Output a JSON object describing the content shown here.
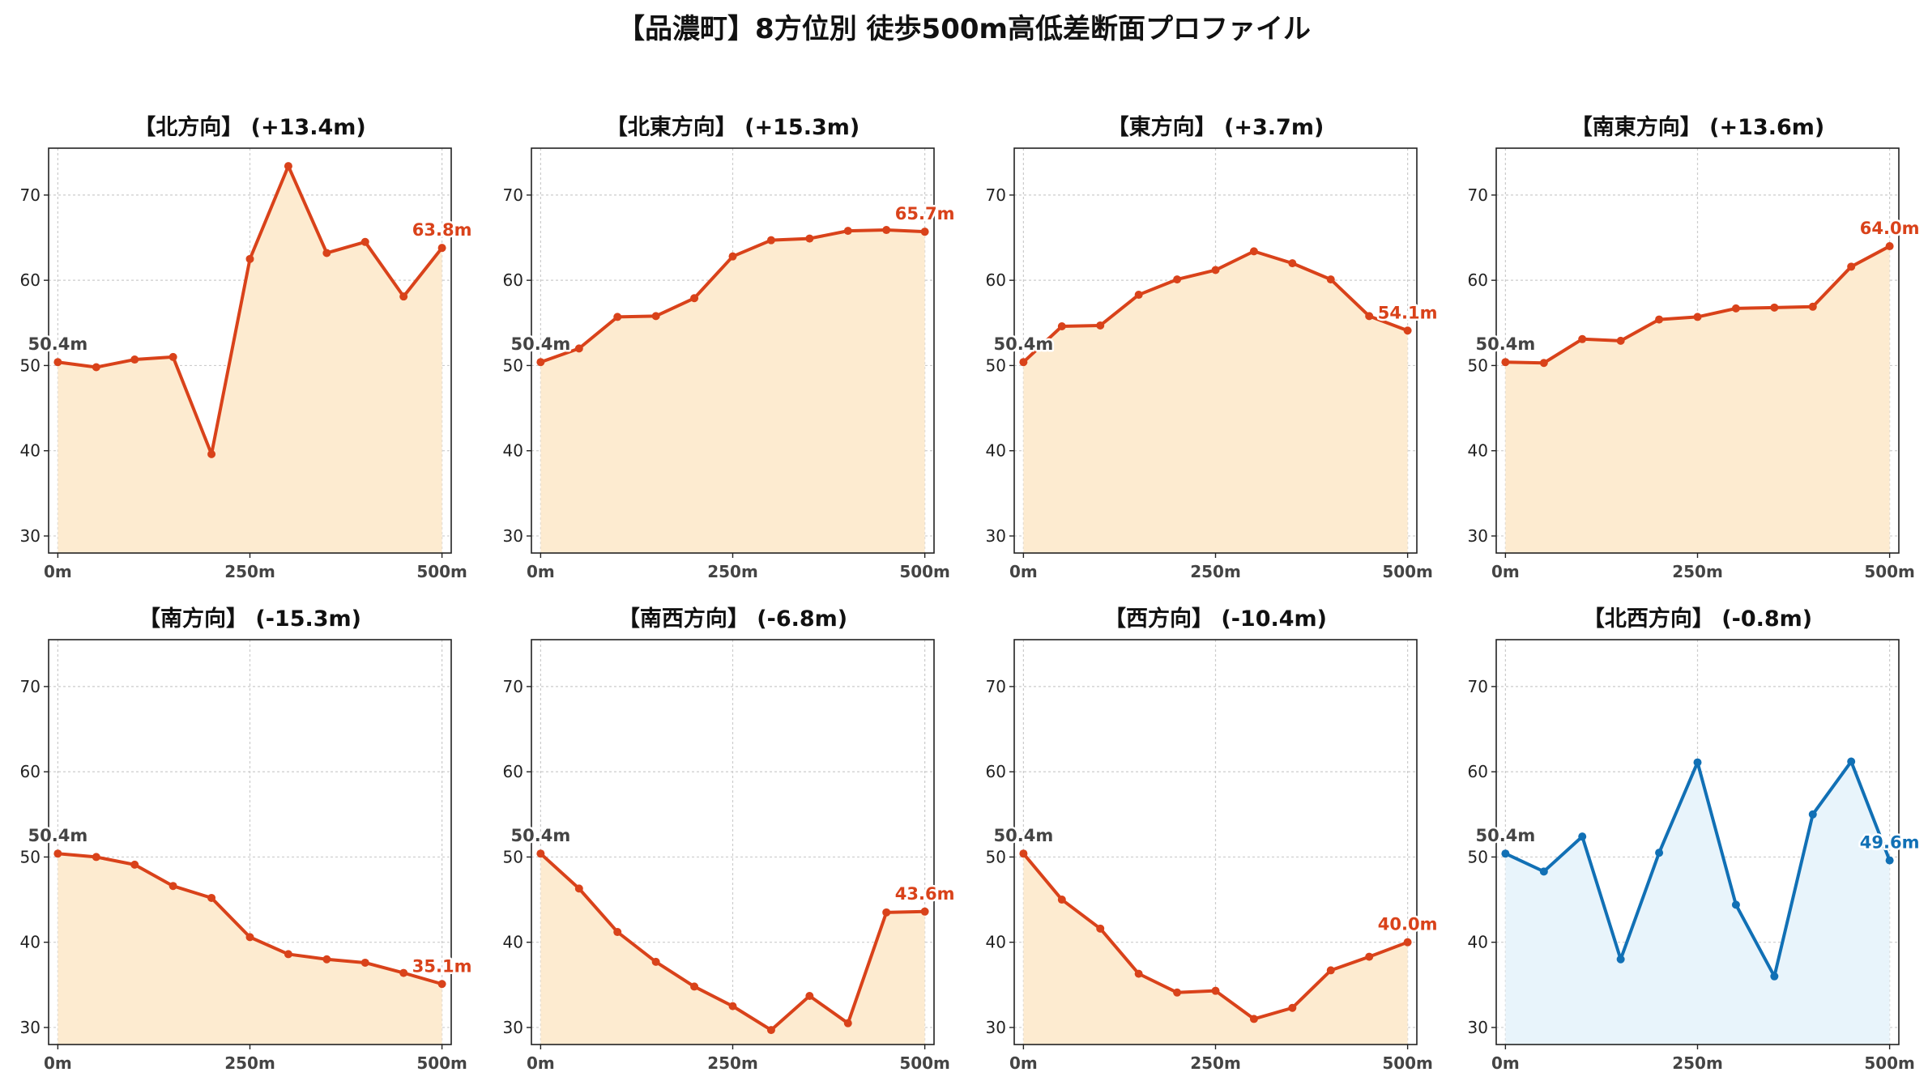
{
  "title": "【品濃町】8方位別 徒歩500m高低差断面プロファイル",
  "colors": {
    "up_line": "#d9421a",
    "up_fill": "#fdebd0",
    "down_line": "#1170b5",
    "down_fill": "#e8f4fb",
    "start_label": "#444444",
    "grid": "#cccccc"
  },
  "chart_data": [
    {
      "type": "area",
      "title": "【北方向】 (+13.4m)",
      "start_label": "50.4m",
      "end_label": "63.8m",
      "style": "up",
      "x": [
        0,
        50,
        100,
        150,
        200,
        250,
        300,
        350,
        400,
        450,
        500
      ],
      "y": [
        50.4,
        49.8,
        50.7,
        51.0,
        39.6,
        62.5,
        73.4,
        63.2,
        64.5,
        58.1,
        63.8
      ],
      "xticks": [
        "0m",
        "250m",
        "500m"
      ],
      "yticks": [
        "30",
        "40",
        "50",
        "60",
        "70"
      ],
      "ylim": [
        28,
        75.5
      ],
      "xlim": [
        -12,
        512
      ],
      "grid": true
    },
    {
      "type": "area",
      "title": "【北東方向】 (+15.3m)",
      "start_label": "50.4m",
      "end_label": "65.7m",
      "style": "up",
      "x": [
        0,
        50,
        100,
        150,
        200,
        250,
        300,
        350,
        400,
        450,
        500
      ],
      "y": [
        50.4,
        52.0,
        55.7,
        55.8,
        57.9,
        62.8,
        64.7,
        64.9,
        65.8,
        65.9,
        65.7
      ],
      "xticks": [
        "0m",
        "250m",
        "500m"
      ],
      "yticks": [
        "30",
        "40",
        "50",
        "60",
        "70"
      ],
      "ylim": [
        28,
        75.5
      ],
      "xlim": [
        -12,
        512
      ],
      "grid": true
    },
    {
      "type": "area",
      "title": "【東方向】 (+3.7m)",
      "start_label": "50.4m",
      "end_label": "54.1m",
      "style": "up",
      "x": [
        0,
        50,
        100,
        150,
        200,
        250,
        300,
        350,
        400,
        450,
        500
      ],
      "y": [
        50.4,
        54.6,
        54.7,
        58.3,
        60.1,
        61.2,
        63.4,
        62.0,
        60.1,
        55.8,
        54.1
      ],
      "xticks": [
        "0m",
        "250m",
        "500m"
      ],
      "yticks": [
        "30",
        "40",
        "50",
        "60",
        "70"
      ],
      "ylim": [
        28,
        75.5
      ],
      "xlim": [
        -12,
        512
      ],
      "grid": true
    },
    {
      "type": "area",
      "title": "【南東方向】 (+13.6m)",
      "start_label": "50.4m",
      "end_label": "64.0m",
      "style": "up",
      "x": [
        0,
        50,
        100,
        150,
        200,
        250,
        300,
        350,
        400,
        450,
        500
      ],
      "y": [
        50.4,
        50.3,
        53.1,
        52.9,
        55.4,
        55.7,
        56.7,
        56.8,
        56.9,
        61.6,
        64.0
      ],
      "xticks": [
        "0m",
        "250m",
        "500m"
      ],
      "yticks": [
        "30",
        "40",
        "50",
        "60",
        "70"
      ],
      "ylim": [
        28,
        75.5
      ],
      "xlim": [
        -12,
        512
      ],
      "grid": true
    },
    {
      "type": "area",
      "title": "【南方向】 (-15.3m)",
      "start_label": "50.4m",
      "end_label": "35.1m",
      "style": "up",
      "x": [
        0,
        50,
        100,
        150,
        200,
        250,
        300,
        350,
        400,
        450,
        500
      ],
      "y": [
        50.4,
        50.0,
        49.1,
        46.6,
        45.2,
        40.6,
        38.6,
        38.0,
        37.6,
        36.4,
        35.1
      ],
      "xticks": [
        "0m",
        "250m",
        "500m"
      ],
      "yticks": [
        "30",
        "40",
        "50",
        "60",
        "70"
      ],
      "ylim": [
        28,
        75.5
      ],
      "xlim": [
        -12,
        512
      ],
      "grid": true
    },
    {
      "type": "area",
      "title": "【南西方向】 (-6.8m)",
      "start_label": "50.4m",
      "end_label": "43.6m",
      "style": "up",
      "x": [
        0,
        50,
        100,
        150,
        200,
        250,
        300,
        350,
        400,
        450,
        500
      ],
      "y": [
        50.4,
        46.3,
        41.2,
        37.7,
        34.8,
        32.5,
        29.7,
        33.7,
        30.5,
        43.5,
        43.6
      ],
      "xticks": [
        "0m",
        "250m",
        "500m"
      ],
      "yticks": [
        "30",
        "40",
        "50",
        "60",
        "70"
      ],
      "ylim": [
        28,
        75.5
      ],
      "xlim": [
        -12,
        512
      ],
      "grid": true
    },
    {
      "type": "area",
      "title": "【西方向】 (-10.4m)",
      "start_label": "50.4m",
      "end_label": "40.0m",
      "style": "up",
      "x": [
        0,
        50,
        100,
        150,
        200,
        250,
        300,
        350,
        400,
        450,
        500
      ],
      "y": [
        50.4,
        45.0,
        41.6,
        36.3,
        34.1,
        34.3,
        31.0,
        32.3,
        36.7,
        38.3,
        40.0
      ],
      "xticks": [
        "0m",
        "250m",
        "500m"
      ],
      "yticks": [
        "30",
        "40",
        "50",
        "60",
        "70"
      ],
      "ylim": [
        28,
        75.5
      ],
      "xlim": [
        -12,
        512
      ],
      "grid": true
    },
    {
      "type": "area",
      "title": "【北西方向】 (-0.8m)",
      "start_label": "50.4m",
      "end_label": "49.6m",
      "style": "down",
      "x": [
        0,
        50,
        100,
        150,
        200,
        250,
        300,
        350,
        400,
        450,
        500
      ],
      "y": [
        50.4,
        48.3,
        52.4,
        38.0,
        50.5,
        61.1,
        44.4,
        36.0,
        55.0,
        61.2,
        49.6
      ],
      "xticks": [
        "0m",
        "250m",
        "500m"
      ],
      "yticks": [
        "30",
        "40",
        "50",
        "60",
        "70"
      ],
      "ylim": [
        28,
        75.5
      ],
      "xlim": [
        -12,
        512
      ],
      "grid": true
    }
  ]
}
